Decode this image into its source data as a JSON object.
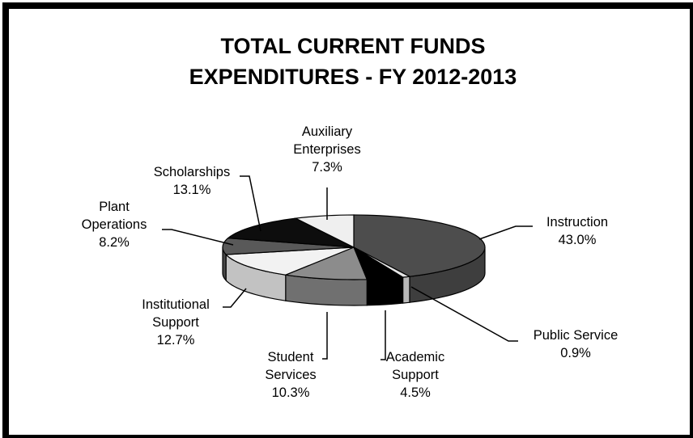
{
  "chart_data": {
    "type": "pie",
    "title_lines": [
      "TOTAL CURRENT FUNDS",
      "EXPENDITURES - FY 2012-2013"
    ],
    "slices": [
      {
        "name_lines": [
          "Instruction"
        ],
        "value": 43.0,
        "value_label": "43.0%",
        "color": "#4d4d4d"
      },
      {
        "name_lines": [
          "Public Service"
        ],
        "value": 0.9,
        "value_label": "0.9%",
        "color": "#e6e6e6"
      },
      {
        "name_lines": [
          "Academic",
          "Support"
        ],
        "value": 4.5,
        "value_label": "4.5%",
        "color": "#000000"
      },
      {
        "name_lines": [
          "Student",
          "Services"
        ],
        "value": 10.3,
        "value_label": "10.3%",
        "color": "#8c8c8c"
      },
      {
        "name_lines": [
          "Institutional",
          "Support"
        ],
        "value": 12.7,
        "value_label": "12.7%",
        "color": "#f2f2f2"
      },
      {
        "name_lines": [
          "Plant",
          "Operations"
        ],
        "value": 8.2,
        "value_label": "8.2%",
        "color": "#595959"
      },
      {
        "name_lines": [
          "Scholarships"
        ],
        "value": 13.1,
        "value_label": "13.1%",
        "color": "#0d0d0d"
      },
      {
        "name_lines": [
          "Auxiliary",
          "Enterprises"
        ],
        "value": 7.3,
        "value_label": "7.3%",
        "color": "#efefef"
      }
    ]
  }
}
